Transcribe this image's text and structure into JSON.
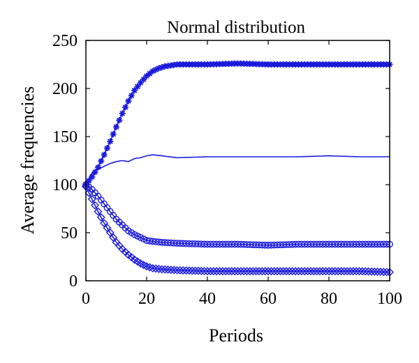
{
  "chart_data": {
    "type": "line",
    "title": "Normal distribution",
    "xlabel": "Periods",
    "ylabel": "Average frequencies",
    "xlim": [
      0,
      100
    ],
    "ylim": [
      0,
      250
    ],
    "xticks": [
      0,
      20,
      40,
      60,
      80,
      100
    ],
    "yticks": [
      0,
      50,
      100,
      150,
      200,
      250
    ],
    "grid": false,
    "color": "#1a1adb",
    "series": [
      {
        "marker": "star",
        "x": [
          0,
          2,
          4,
          6,
          8,
          10,
          12,
          14,
          16,
          18,
          20,
          22,
          24,
          26,
          28,
          30,
          35,
          40,
          50,
          60,
          70,
          80,
          90,
          100
        ],
        "values": [
          100,
          108,
          118,
          131,
          145,
          160,
          174,
          187,
          198,
          206,
          213,
          218,
          221,
          223,
          224,
          225,
          225,
          225,
          226,
          225,
          225,
          225,
          225,
          225
        ]
      },
      {
        "marker": "none",
        "x": [
          0,
          1,
          2,
          4,
          6,
          8,
          10,
          12,
          14,
          16,
          18,
          20,
          22,
          25,
          30,
          40,
          50,
          60,
          70,
          80,
          90,
          100
        ],
        "values": [
          100,
          106,
          112,
          116,
          119,
          122,
          124,
          125,
          124,
          127,
          128,
          130,
          131,
          130,
          128,
          129,
          129,
          129,
          129,
          130,
          129,
          129
        ]
      },
      {
        "marker": "circle",
        "x": [
          0,
          2,
          4,
          6,
          8,
          10,
          12,
          14,
          16,
          18,
          20,
          22,
          25,
          30,
          40,
          50,
          60,
          70,
          80,
          90,
          100
        ],
        "values": [
          100,
          95,
          88,
          80,
          72,
          64,
          58,
          52,
          48,
          45,
          42,
          41,
          40,
          39,
          38,
          38,
          37,
          38,
          38,
          38,
          38
        ]
      },
      {
        "marker": "diamond",
        "x": [
          0,
          2,
          4,
          6,
          8,
          10,
          12,
          14,
          16,
          18,
          20,
          22,
          25,
          30,
          40,
          50,
          60,
          70,
          80,
          90,
          100
        ],
        "values": [
          98,
          85,
          72,
          60,
          50,
          40,
          33,
          27,
          22,
          18,
          15,
          13,
          12,
          11,
          10,
          10,
          10,
          10,
          10,
          10,
          9
        ]
      }
    ]
  }
}
